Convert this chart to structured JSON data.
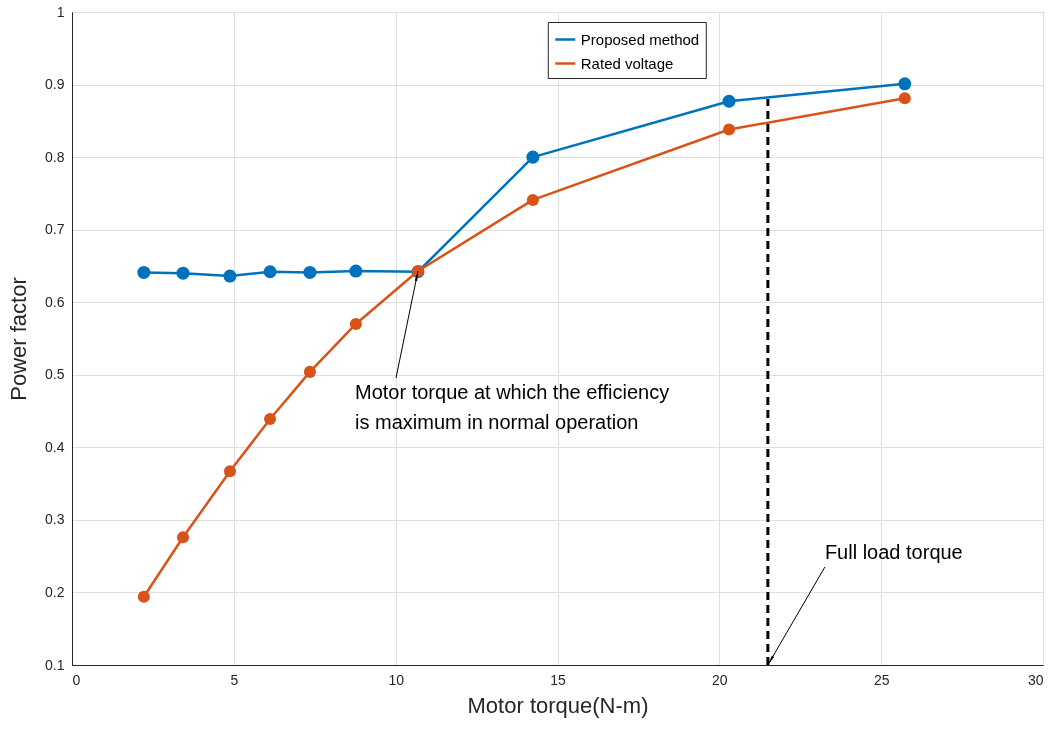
{
  "chart_data": {
    "type": "line",
    "xlabel": "Motor torque(N-m)",
    "ylabel": "Power factor",
    "xlim": [
      0,
      30
    ],
    "xticks": [
      0,
      5,
      10,
      15,
      20,
      25,
      30
    ],
    "ylim": [
      0.1,
      1
    ],
    "yticks": [
      0.1,
      0.2,
      0.3,
      0.4,
      0.5,
      0.6,
      0.7,
      0.8,
      0.9,
      1
    ],
    "grid": true,
    "legend": "top",
    "marker": "circle",
    "line_style": "solid",
    "series": [
      {
        "name": "Proposed method",
        "color": "#0072bd",
        "x": [
          2.22,
          3.43,
          4.88,
          6.12,
          7.35,
          8.77,
          10.69,
          14.24,
          20.3,
          25.73
        ],
        "values": [
          0.641,
          0.64,
          0.636,
          0.642,
          0.641,
          0.643,
          0.642,
          0.8,
          0.877,
          0.901
        ]
      },
      {
        "name": "Rated voltage",
        "color": "#d95319",
        "x": [
          2.22,
          3.43,
          4.88,
          6.12,
          7.35,
          8.77,
          10.69,
          14.24,
          20.3,
          25.73
        ],
        "values": [
          0.194,
          0.276,
          0.367,
          0.439,
          0.504,
          0.57,
          0.643,
          0.741,
          0.838,
          0.881
        ]
      },
      {
        "color": "#000000",
        "x": [
          21.5,
          21.5
        ],
        "values": [
          0.1,
          0.88
        ],
        "marker": "none",
        "line_style": "dashed"
      }
    ],
    "annotations": [
      {
        "text": "Motor torque at which the efficiency is maximum in normal operation",
        "x": 10.69,
        "y": 0.643
      },
      {
        "text": "Full load torque",
        "x": 21.5,
        "y": 0.1
      }
    ]
  }
}
